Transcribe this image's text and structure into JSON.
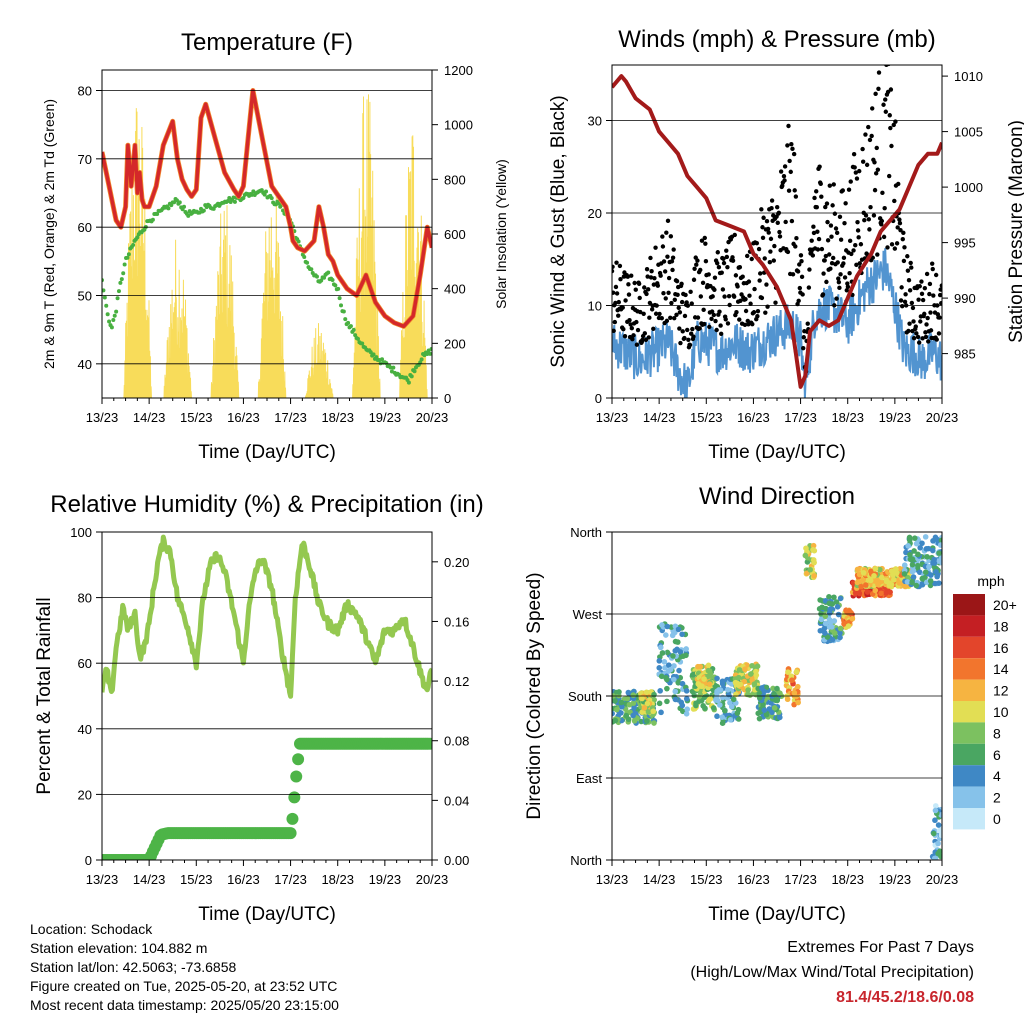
{
  "colors": {
    "temp": "#d4282a",
    "temp9": "#f28a2c",
    "dewpoint": "#48b040",
    "solar": "#f8dc5a",
    "gust": "#000000",
    "wind": "#5294d0",
    "pressure": "#a31a1a",
    "rh": "#94c850",
    "precip": "#4db447",
    "extremes": "#c8262d"
  },
  "chart_data": [
    {
      "id": "temperature",
      "type": "line",
      "title": "Temperature (F)",
      "xlabel": "Time (Day/UTC)",
      "ylabel_left": "2m & 9m T (Red, Orange) & 2m Td (Green)",
      "ylabel_right": "Solar Insolation (Yellow)",
      "x_ticks": [
        "13/23",
        "14/23",
        "15/23",
        "16/23",
        "17/23",
        "18/23",
        "19/23",
        "20/23"
      ],
      "xlim": [
        0,
        7
      ],
      "ylim": [
        35,
        83
      ],
      "y_ticks": [
        40,
        50,
        60,
        70,
        80
      ],
      "y2lim": [
        0,
        1200
      ],
      "y2_ticks": [
        0,
        200,
        400,
        600,
        800,
        1000,
        1200
      ],
      "grid": true,
      "series": [
        {
          "key": "temp",
          "axis": "left",
          "x": [
            0,
            0.15,
            0.3,
            0.4,
            0.5,
            0.55,
            0.62,
            0.7,
            0.75,
            0.8,
            0.85,
            0.9,
            1.0,
            1.15,
            1.3,
            1.5,
            1.6,
            1.7,
            1.8,
            1.9,
            2.0,
            2.1,
            2.2,
            2.4,
            2.6,
            2.8,
            2.9,
            3.0,
            3.1,
            3.2,
            3.4,
            3.6,
            3.8,
            3.9,
            4.0,
            4.05,
            4.15,
            4.3,
            4.5,
            4.6,
            4.7,
            4.8,
            4.9,
            5.0,
            5.2,
            5.4,
            5.6,
            5.7,
            5.8,
            6.0,
            6.2,
            6.4,
            6.6,
            6.75,
            6.9,
            7.0
          ],
          "y": [
            71,
            66,
            61,
            60,
            63,
            72,
            66,
            72,
            65,
            68,
            64,
            63,
            63,
            66,
            72,
            75.5,
            70,
            67,
            65.5,
            64.5,
            65.5,
            76,
            78,
            73,
            68,
            65.5,
            64.5,
            66,
            73,
            80,
            73,
            66,
            64,
            63,
            60,
            58,
            57,
            56.5,
            58,
            63,
            60,
            56,
            55,
            53,
            51,
            50,
            53,
            51,
            49,
            47,
            46,
            45.5,
            47,
            53,
            60,
            57
          ]
        },
        {
          "key": "dewpoint",
          "axis": "left",
          "x": [
            0,
            0.1,
            0.2,
            0.3,
            0.4,
            0.5,
            0.7,
            0.9,
            1.0,
            1.2,
            1.4,
            1.6,
            1.8,
            2.0,
            2.2,
            2.4,
            2.6,
            2.8,
            3.0,
            3.2,
            3.4,
            3.6,
            3.8,
            4.0,
            4.2,
            4.4,
            4.5,
            4.6,
            4.8,
            5.0,
            5.1,
            5.2,
            5.4,
            5.6,
            5.8,
            6.0,
            6.2,
            6.4,
            6.5,
            6.6,
            6.8,
            7.0
          ],
          "y": [
            52,
            48,
            45,
            48,
            52,
            55,
            58,
            60,
            61,
            62,
            63,
            64,
            62,
            62,
            63,
            63,
            64,
            64,
            64.5,
            65,
            65.5,
            64,
            63,
            61,
            57,
            54,
            53,
            52,
            53,
            51,
            48,
            46,
            44,
            42,
            41,
            40,
            39,
            38,
            37.5,
            39,
            41,
            42
          ]
        },
        {
          "key": "solar",
          "axis": "right",
          "pulses": [
            [
              0.75,
              1180
            ],
            [
              1.05,
              0
            ],
            [
              1.6,
              620
            ],
            [
              2.6,
              760
            ],
            [
              3.6,
              850
            ],
            [
              4.6,
              280
            ],
            [
              5.6,
              1180
            ],
            [
              6.6,
              1100
            ]
          ]
        }
      ]
    },
    {
      "id": "winds",
      "type": "line",
      "title": "Winds (mph) & Pressure (mb)",
      "xlabel": "Time (Day/UTC)",
      "ylabel_left": "Sonic Wind & Gust (Blue, Black)",
      "ylabel_right": "Station Pressure (Maroon)",
      "x_ticks": [
        "13/23",
        "14/23",
        "15/23",
        "16/23",
        "17/23",
        "18/23",
        "19/23",
        "20/23"
      ],
      "xlim": [
        0,
        7
      ],
      "ylim": [
        0,
        36
      ],
      "y_ticks": [
        0,
        10,
        20,
        30
      ],
      "y2lim": [
        981,
        1011
      ],
      "y2_ticks": [
        985,
        990,
        995,
        1000,
        1005,
        1010
      ],
      "grid": true,
      "series": [
        {
          "key": "pressure",
          "axis": "right",
          "x": [
            0,
            0.2,
            0.3,
            0.5,
            0.8,
            1.0,
            1.2,
            1.4,
            1.6,
            1.8,
            2.0,
            2.2,
            2.5,
            2.8,
            3.0,
            3.2,
            3.5,
            3.7,
            3.8,
            3.9,
            4.0,
            4.1,
            4.2,
            4.4,
            4.6,
            4.8,
            5.0,
            5.2,
            5.5,
            5.7,
            5.9,
            6.1,
            6.3,
            6.5,
            6.7,
            6.9,
            7.0
          ],
          "y": [
            1009,
            1010,
            1009.5,
            1008,
            1007,
            1005,
            1004,
            1003,
            1001,
            1000,
            999,
            997,
            996.5,
            996,
            994,
            993,
            991,
            989,
            988,
            985,
            982,
            983,
            987,
            988,
            987.5,
            988,
            990,
            992,
            994,
            996,
            997,
            998,
            1000,
            1002,
            1003,
            1003,
            1004
          ]
        },
        {
          "key": "wind",
          "axis": "left",
          "x": [
            0,
            0.3,
            0.6,
            0.9,
            1.2,
            1.4,
            1.6,
            1.8,
            2.0,
            2.3,
            2.6,
            2.9,
            3.2,
            3.5,
            3.8,
            4.0,
            4.1,
            4.3,
            4.5,
            4.8,
            5.0,
            5.2,
            5.4,
            5.6,
            5.8,
            6.0,
            6.2,
            6.4,
            6.6,
            6.8,
            7.0
          ],
          "y": [
            6,
            5,
            4,
            5,
            6,
            3,
            1,
            6,
            6,
            5,
            6,
            5,
            6,
            7,
            8,
            6,
            1,
            9,
            10,
            9,
            8,
            10,
            12,
            13,
            14,
            10,
            5,
            5,
            4,
            5,
            4
          ]
        },
        {
          "key": "gust",
          "axis": "left",
          "x": [
            0,
            0.3,
            0.6,
            0.9,
            1.2,
            1.4,
            1.6,
            1.8,
            2.0,
            2.3,
            2.6,
            2.9,
            3.2,
            3.5,
            3.8,
            4.0,
            4.1,
            4.3,
            4.5,
            4.8,
            5.0,
            5.2,
            5.4,
            5.6,
            5.8,
            6.0,
            6.2,
            6.4,
            6.6,
            6.8,
            7.0
          ],
          "y": [
            11,
            10,
            9,
            12,
            14,
            10,
            8,
            12,
            13,
            11,
            13,
            11,
            15,
            17,
            22,
            14,
            3,
            20,
            18,
            16,
            17,
            20,
            22,
            25,
            28,
            22,
            12,
            10,
            9,
            11,
            9
          ]
        }
      ]
    },
    {
      "id": "rh_precip",
      "type": "line",
      "title": "Relative Humidity (%) & Precipitation (in)",
      "xlabel": "Time (Day/UTC)",
      "ylabel_left": "Percent & Total Rainfall",
      "x_ticks": [
        "13/23",
        "14/23",
        "15/23",
        "16/23",
        "17/23",
        "18/23",
        "19/23",
        "20/23"
      ],
      "xlim": [
        0,
        7
      ],
      "ylim": [
        0,
        100
      ],
      "y_ticks": [
        0,
        20,
        40,
        60,
        80,
        100
      ],
      "y2lim": [
        0,
        0.22
      ],
      "y2_ticks": [
        "0.00",
        "0.04",
        "0.08",
        "0.12",
        "0.16",
        "0.20"
      ],
      "grid": true,
      "series": [
        {
          "key": "rh",
          "axis": "left",
          "x": [
            0,
            0.1,
            0.2,
            0.3,
            0.45,
            0.55,
            0.7,
            0.8,
            0.9,
            1.0,
            1.1,
            1.2,
            1.3,
            1.45,
            1.6,
            1.8,
            2.0,
            2.15,
            2.3,
            2.45,
            2.6,
            2.8,
            3.0,
            3.1,
            3.25,
            3.4,
            3.6,
            3.8,
            4.0,
            4.1,
            4.25,
            4.4,
            4.6,
            4.8,
            5.0,
            5.2,
            5.4,
            5.6,
            5.8,
            6.0,
            6.2,
            6.4,
            6.6,
            6.8,
            6.9,
            7.0
          ],
          "y": [
            52,
            58,
            50,
            65,
            77,
            70,
            75,
            62,
            65,
            72,
            83,
            92,
            97,
            94,
            80,
            72,
            60,
            80,
            90,
            93,
            88,
            75,
            60,
            75,
            88,
            92,
            83,
            65,
            50,
            80,
            97,
            90,
            78,
            72,
            70,
            78,
            75,
            68,
            60,
            70,
            70,
            74,
            65,
            55,
            52,
            58
          ]
        },
        {
          "key": "precip",
          "axis": "right",
          "x": [
            0,
            1.0,
            1.1,
            1.25,
            1.4,
            2.0,
            3.0,
            4.0,
            4.05,
            4.1,
            4.15,
            4.2,
            5.0,
            6.0,
            7.0
          ],
          "y": [
            0.0,
            0.0,
            0.007,
            0.017,
            0.018,
            0.018,
            0.018,
            0.018,
            0.03,
            0.05,
            0.065,
            0.078,
            0.078,
            0.078,
            0.078
          ]
        }
      ]
    },
    {
      "id": "wind_direction",
      "type": "scatter",
      "title": "Wind Direction",
      "xlabel": "Time (Day/UTC)",
      "ylabel": "Direction (Colored By Speed)",
      "x_ticks": [
        "13/23",
        "14/23",
        "15/23",
        "16/23",
        "17/23",
        "18/23",
        "19/23",
        "20/23"
      ],
      "xlim": [
        0,
        7
      ],
      "y_ticks": [
        "North",
        "East",
        "South",
        "West",
        "North"
      ],
      "ylim": [
        0,
        360
      ],
      "grid": true,
      "colorbar": {
        "title": "mph",
        "labels": [
          "0",
          "2",
          "4",
          "6",
          "8",
          "10",
          "12",
          "14",
          "16",
          "18",
          "20+"
        ],
        "colors": [
          "#c6e9f9",
          "#86c2ea",
          "#3f88c5",
          "#4aa662",
          "#7cc160",
          "#e2de54",
          "#f6b441",
          "#f2752d",
          "#e3452b",
          "#c41f23",
          "#9b1617"
        ]
      },
      "clusters": [
        {
          "x0": 0.0,
          "x1": 0.9,
          "deg0": 150,
          "deg1": 185,
          "speed": 6
        },
        {
          "x0": 0.6,
          "x1": 0.9,
          "deg0": 160,
          "deg1": 185,
          "speed": 9
        },
        {
          "x0": 1.0,
          "x1": 1.6,
          "deg0": 160,
          "deg1": 260,
          "speed": 4
        },
        {
          "x0": 1.7,
          "x1": 2.2,
          "deg0": 165,
          "deg1": 210,
          "speed": 8
        },
        {
          "x0": 1.8,
          "x1": 2.1,
          "deg0": 190,
          "deg1": 215,
          "speed": 10
        },
        {
          "x0": 2.2,
          "x1": 2.7,
          "deg0": 150,
          "deg1": 200,
          "speed": 4
        },
        {
          "x0": 2.6,
          "x1": 3.1,
          "deg0": 180,
          "deg1": 215,
          "speed": 10
        },
        {
          "x0": 3.1,
          "x1": 3.6,
          "deg0": 155,
          "deg1": 190,
          "speed": 6
        },
        {
          "x0": 3.7,
          "x1": 3.95,
          "deg0": 170,
          "deg1": 210,
          "speed": 13
        },
        {
          "x0": 4.1,
          "x1": 4.3,
          "deg0": 310,
          "deg1": 345,
          "speed": 9
        },
        {
          "x0": 4.4,
          "x1": 4.9,
          "deg0": 240,
          "deg1": 290,
          "speed": 5
        },
        {
          "x0": 4.9,
          "x1": 5.1,
          "deg0": 255,
          "deg1": 275,
          "speed": 13
        },
        {
          "x0": 5.1,
          "x1": 5.9,
          "deg0": 290,
          "deg1": 305,
          "speed": 15
        },
        {
          "x0": 5.2,
          "x1": 6.3,
          "deg0": 300,
          "deg1": 320,
          "speed": 11
        },
        {
          "x0": 6.2,
          "x1": 7.0,
          "deg0": 300,
          "deg1": 355,
          "speed": 4
        },
        {
          "x0": 6.8,
          "x1": 7.0,
          "deg0": 0,
          "deg1": 60,
          "speed": 3
        }
      ]
    }
  ],
  "info": {
    "location": "Location: Schodack",
    "elevation": "Station elevation: 104.882 m",
    "latlon": "Station lat/lon: 42.5063; -73.6858",
    "created": "Figure created on Tue, 2025-05-20, at 23:52 UTC",
    "timestamp": "Most recent data timestamp: 2025/05/20 23:15:00"
  },
  "extremes": {
    "title": "Extremes For Past 7 Days",
    "subtitle": "(High/Low/Max Wind/Total Precipitation)",
    "values": "81.4/45.2/18.6/0.08"
  }
}
